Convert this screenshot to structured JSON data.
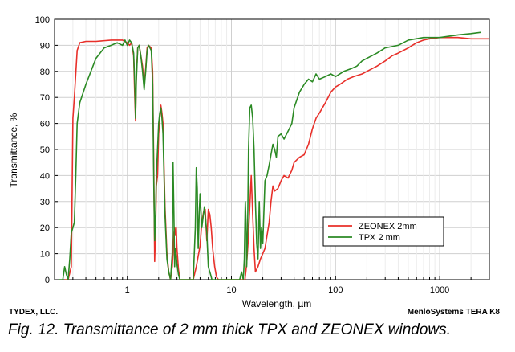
{
  "chart_data": {
    "type": "line",
    "title": "",
    "xlabel": "Wavelength, µm",
    "ylabel": "Transmittance, %",
    "x_scale": "log",
    "xlim": [
      0.2,
      3000
    ],
    "ylim": [
      0,
      100
    ],
    "grid": true,
    "legend_position": "bottom-right",
    "x_ticks": [
      1,
      10,
      100,
      1000
    ],
    "x_tick_labels": [
      "1",
      "10",
      "100",
      "1000"
    ],
    "y_ticks": [
      0,
      10,
      20,
      30,
      40,
      50,
      60,
      70,
      80,
      90,
      100
    ],
    "y_tick_labels": [
      "0",
      "10",
      "20",
      "30",
      "40",
      "50",
      "60",
      "70",
      "80",
      "90",
      "100"
    ],
    "series": [
      {
        "name": "ZEONEX  2mm",
        "color": "#e8302a",
        "points": [
          [
            0.25,
            0
          ],
          [
            0.27,
            0
          ],
          [
            0.29,
            5
          ],
          [
            0.3,
            62
          ],
          [
            0.31,
            70
          ],
          [
            0.33,
            88
          ],
          [
            0.35,
            91
          ],
          [
            0.4,
            91.5
          ],
          [
            0.5,
            91.5
          ],
          [
            0.7,
            92
          ],
          [
            0.9,
            92
          ],
          [
            1.0,
            91
          ],
          [
            1.05,
            90
          ],
          [
            1.1,
            91
          ],
          [
            1.15,
            86
          ],
          [
            1.18,
            70
          ],
          [
            1.2,
            61
          ],
          [
            1.22,
            78
          ],
          [
            1.26,
            89
          ],
          [
            1.3,
            90
          ],
          [
            1.35,
            86
          ],
          [
            1.4,
            82
          ],
          [
            1.45,
            75
          ],
          [
            1.5,
            81
          ],
          [
            1.55,
            89
          ],
          [
            1.6,
            90
          ],
          [
            1.7,
            89
          ],
          [
            1.75,
            80
          ],
          [
            1.8,
            40
          ],
          [
            1.83,
            7
          ],
          [
            1.87,
            20
          ],
          [
            1.9,
            36
          ],
          [
            1.95,
            40
          ],
          [
            2.0,
            56
          ],
          [
            2.05,
            62
          ],
          [
            2.1,
            67
          ],
          [
            2.15,
            64
          ],
          [
            2.2,
            60
          ],
          [
            2.3,
            28
          ],
          [
            2.4,
            10
          ],
          [
            2.5,
            3
          ],
          [
            2.6,
            0
          ],
          [
            2.7,
            5
          ],
          [
            2.75,
            10
          ],
          [
            2.8,
            18
          ],
          [
            2.85,
            20
          ],
          [
            2.9,
            17
          ],
          [
            2.95,
            20
          ],
          [
            3.0,
            12
          ],
          [
            3.1,
            4
          ],
          [
            3.2,
            0
          ],
          [
            3.5,
            0
          ],
          [
            4.0,
            0
          ],
          [
            4.3,
            0
          ],
          [
            4.6,
            5
          ],
          [
            5.0,
            13
          ],
          [
            5.2,
            22
          ],
          [
            5.4,
            26
          ],
          [
            5.6,
            27
          ],
          [
            5.8,
            15
          ],
          [
            6.0,
            27
          ],
          [
            6.2,
            25
          ],
          [
            6.4,
            20
          ],
          [
            6.6,
            12
          ],
          [
            6.9,
            5
          ],
          [
            7.2,
            1
          ],
          [
            7.5,
            0
          ],
          [
            10,
            0
          ],
          [
            12,
            0
          ],
          [
            13.5,
            0
          ],
          [
            14,
            6
          ],
          [
            14.5,
            15
          ],
          [
            15,
            28
          ],
          [
            15.5,
            40
          ],
          [
            16,
            25
          ],
          [
            16.5,
            12
          ],
          [
            17,
            3
          ],
          [
            18,
            5
          ],
          [
            19,
            8
          ],
          [
            20,
            10
          ],
          [
            21,
            12
          ],
          [
            22,
            17
          ],
          [
            23,
            22
          ],
          [
            24,
            30
          ],
          [
            25,
            36
          ],
          [
            26,
            34
          ],
          [
            28,
            35
          ],
          [
            30,
            38
          ],
          [
            32,
            40
          ],
          [
            35,
            39
          ],
          [
            38,
            42
          ],
          [
            40,
            45
          ],
          [
            45,
            47
          ],
          [
            50,
            48
          ],
          [
            55,
            52
          ],
          [
            60,
            58
          ],
          [
            65,
            62
          ],
          [
            70,
            64
          ],
          [
            80,
            68
          ],
          [
            90,
            72
          ],
          [
            100,
            74
          ],
          [
            110,
            75
          ],
          [
            130,
            77
          ],
          [
            150,
            78
          ],
          [
            180,
            79
          ],
          [
            200,
            80
          ],
          [
            250,
            82
          ],
          [
            300,
            84
          ],
          [
            350,
            86
          ],
          [
            400,
            87
          ],
          [
            500,
            89
          ],
          [
            600,
            91
          ],
          [
            700,
            92
          ],
          [
            800,
            92.5
          ],
          [
            1000,
            93
          ],
          [
            1500,
            93
          ],
          [
            2000,
            92.5
          ],
          [
            2500,
            92.5
          ],
          [
            3000,
            92.5
          ]
        ]
      },
      {
        "name": "TPX 2 mm",
        "color": "#2b8a24",
        "points": [
          [
            0.22,
            0
          ],
          [
            0.24,
            0
          ],
          [
            0.25,
            5
          ],
          [
            0.26,
            2
          ],
          [
            0.27,
            0
          ],
          [
            0.28,
            8
          ],
          [
            0.29,
            18
          ],
          [
            0.3,
            20
          ],
          [
            0.31,
            22
          ],
          [
            0.32,
            40
          ],
          [
            0.33,
            60
          ],
          [
            0.35,
            68
          ],
          [
            0.4,
            75
          ],
          [
            0.5,
            85
          ],
          [
            0.6,
            89
          ],
          [
            0.7,
            90
          ],
          [
            0.8,
            91
          ],
          [
            0.9,
            90
          ],
          [
            0.95,
            92
          ],
          [
            1.0,
            90
          ],
          [
            1.05,
            92
          ],
          [
            1.1,
            91
          ],
          [
            1.15,
            87
          ],
          [
            1.18,
            75
          ],
          [
            1.2,
            62
          ],
          [
            1.22,
            76
          ],
          [
            1.26,
            89
          ],
          [
            1.3,
            90
          ],
          [
            1.35,
            86
          ],
          [
            1.4,
            80
          ],
          [
            1.45,
            73
          ],
          [
            1.5,
            80
          ],
          [
            1.55,
            88
          ],
          [
            1.6,
            90
          ],
          [
            1.7,
            88
          ],
          [
            1.75,
            75
          ],
          [
            1.8,
            35
          ],
          [
            1.83,
            15
          ],
          [
            1.87,
            25
          ],
          [
            1.9,
            40
          ],
          [
            1.95,
            50
          ],
          [
            2.0,
            60
          ],
          [
            2.05,
            64
          ],
          [
            2.1,
            66
          ],
          [
            2.15,
            62
          ],
          [
            2.2,
            56
          ],
          [
            2.3,
            25
          ],
          [
            2.4,
            8
          ],
          [
            2.5,
            3
          ],
          [
            2.6,
            0
          ],
          [
            2.7,
            10
          ],
          [
            2.75,
            45
          ],
          [
            2.8,
            25
          ],
          [
            2.85,
            5
          ],
          [
            2.9,
            12
          ],
          [
            3.0,
            6
          ],
          [
            3.1,
            2
          ],
          [
            3.2,
            0
          ],
          [
            4.0,
            0
          ],
          [
            4.3,
            0
          ],
          [
            4.5,
            20
          ],
          [
            4.6,
            43
          ],
          [
            4.7,
            35
          ],
          [
            4.8,
            12
          ],
          [
            4.9,
            25
          ],
          [
            5.0,
            33
          ],
          [
            5.2,
            20
          ],
          [
            5.5,
            28
          ],
          [
            5.8,
            18
          ],
          [
            6.0,
            5
          ],
          [
            6.3,
            2
          ],
          [
            6.5,
            0
          ],
          [
            9,
            0
          ],
          [
            10,
            0
          ],
          [
            11,
            0
          ],
          [
            12,
            0
          ],
          [
            12.5,
            3
          ],
          [
            13,
            0
          ],
          [
            13.3,
            8
          ],
          [
            13.6,
            30
          ],
          [
            13.8,
            22
          ],
          [
            14,
            5
          ],
          [
            14.3,
            20
          ],
          [
            14.6,
            50
          ],
          [
            15,
            66
          ],
          [
            15.5,
            67
          ],
          [
            16,
            62
          ],
          [
            16.5,
            50
          ],
          [
            17,
            30
          ],
          [
            17.5,
            14
          ],
          [
            18,
            8
          ],
          [
            18.5,
            30
          ],
          [
            19,
            12
          ],
          [
            19.5,
            20
          ],
          [
            20,
            14
          ],
          [
            21,
            38
          ],
          [
            22,
            40
          ],
          [
            23,
            44
          ],
          [
            24,
            48
          ],
          [
            25,
            52
          ],
          [
            26,
            50
          ],
          [
            27,
            47
          ],
          [
            28,
            55
          ],
          [
            30,
            56
          ],
          [
            32,
            54
          ],
          [
            35,
            57
          ],
          [
            38,
            60
          ],
          [
            40,
            66
          ],
          [
            45,
            72
          ],
          [
            50,
            75
          ],
          [
            55,
            77
          ],
          [
            60,
            76
          ],
          [
            65,
            79
          ],
          [
            70,
            77
          ],
          [
            80,
            78
          ],
          [
            90,
            79
          ],
          [
            100,
            78
          ],
          [
            120,
            80
          ],
          [
            140,
            81
          ],
          [
            160,
            82
          ],
          [
            180,
            84
          ],
          [
            200,
            85
          ],
          [
            250,
            87
          ],
          [
            300,
            89
          ],
          [
            400,
            90
          ],
          [
            500,
            92
          ],
          [
            700,
            93
          ],
          [
            1000,
            93
          ],
          [
            1500,
            94
          ],
          [
            2000,
            94.5
          ],
          [
            2500,
            95
          ]
        ]
      }
    ]
  },
  "footer": {
    "left": "TYDEX, LLC.",
    "right": "MenloSystems TERA K8"
  },
  "caption": "Fig.  12. Transmittance of 2 mm thick TPX and ZEONEX windows."
}
